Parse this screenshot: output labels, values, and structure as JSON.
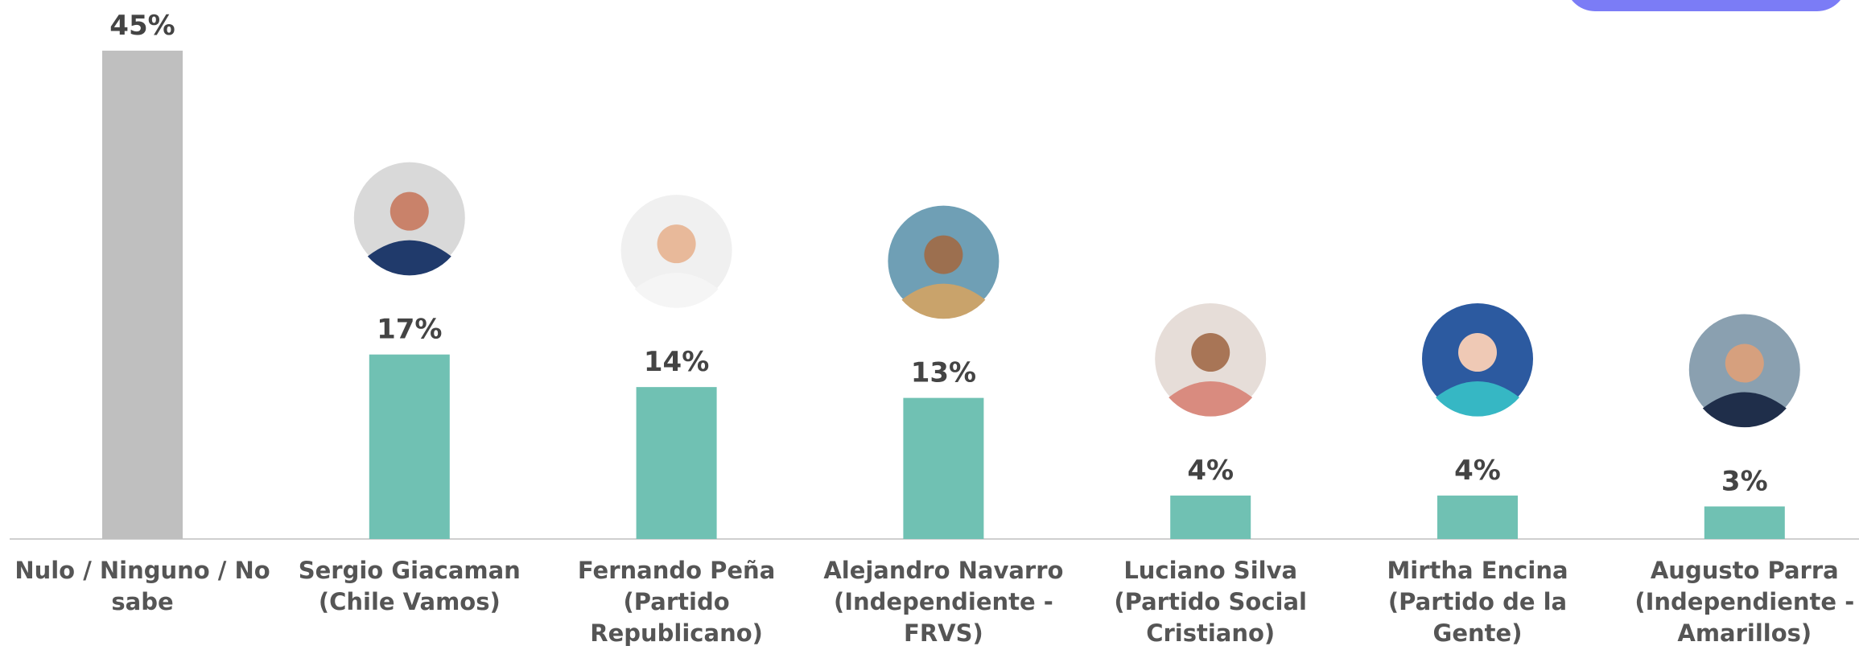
{
  "chart_data": {
    "type": "bar",
    "categories": [
      "Nulo / Ninguno / No sabe",
      "Sergio Giacaman (Chile Vamos)",
      "Fernando Peña (Partido Republicano)",
      "Alejandro Navarro (Independiente - FRVS)",
      "Luciano Silva (Partido Social Cristiano)",
      "Mirtha Encina (Partido de la Gente)",
      "Augusto Parra (Independiente - Amarillos)"
    ],
    "values": [
      45,
      17,
      14,
      13,
      4,
      4,
      3
    ],
    "value_labels": [
      "45%",
      "17%",
      "14%",
      "13%",
      "4%",
      "4%",
      "3%"
    ],
    "colors": [
      "#bfbfbf",
      "#70c1b3",
      "#70c1b3",
      "#70c1b3",
      "#70c1b3",
      "#70c1b3",
      "#70c1b3"
    ]
  }
}
